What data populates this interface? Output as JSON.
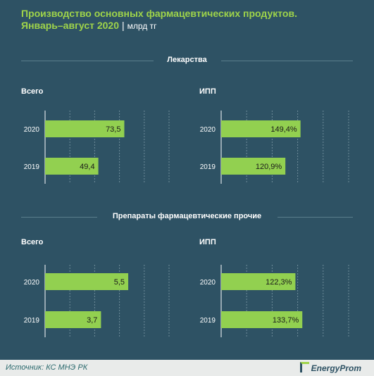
{
  "header": {
    "title_line1": "Производство основных фармацевтических продуктов.",
    "title_line2": "Январь–август 2020",
    "separator": "|",
    "unit": "млрд тг"
  },
  "sections": [
    {
      "title": "Лекарства",
      "left_label": "Всего",
      "right_label": "ИПП"
    },
    {
      "title": "Препараты  фармацевтические   прочие",
      "left_label": "Всего",
      "right_label": "ИПП"
    }
  ],
  "footer": {
    "source": "Источник: КС МНЭ РК",
    "logo": "EnergyProm"
  },
  "colors": {
    "bar": "#92d050",
    "grid": "#6e8c99",
    "axis": "#ffffff",
    "background": "#2e5264"
  },
  "chart_data": [
    {
      "type": "bar",
      "orientation": "horizontal",
      "title": "Лекарства",
      "subtitle": "Всего",
      "categories": [
        "2020",
        "2019"
      ],
      "values": [
        73.5,
        49.4
      ],
      "labels": [
        "73,5",
        "49,4"
      ],
      "xlim": [
        0,
        115
      ],
      "grid": true
    },
    {
      "type": "bar",
      "orientation": "horizontal",
      "title": "Лекарства",
      "subtitle": "ИПП",
      "categories": [
        "2020",
        "2019"
      ],
      "values": [
        149.4,
        120.9
      ],
      "labels": [
        "149,4%",
        "120,9%"
      ],
      "xlim": [
        0,
        240
      ],
      "grid": true
    },
    {
      "type": "bar",
      "orientation": "horizontal",
      "title": "Препараты  фармацевтические   прочие",
      "subtitle": "Всего",
      "categories": [
        "2020",
        "2019"
      ],
      "values": [
        5.5,
        3.7
      ],
      "labels": [
        "5,5",
        "3,7"
      ],
      "xlim": [
        0,
        8.2
      ],
      "grid": true
    },
    {
      "type": "bar",
      "orientation": "horizontal",
      "title": "Препараты  фармацевтические   прочие",
      "subtitle": "ИПП",
      "categories": [
        "2020",
        "2019"
      ],
      "values": [
        122.3,
        133.7
      ],
      "labels": [
        "122,3%",
        "133,7%"
      ],
      "xlim": [
        0,
        210
      ],
      "grid": true
    }
  ]
}
